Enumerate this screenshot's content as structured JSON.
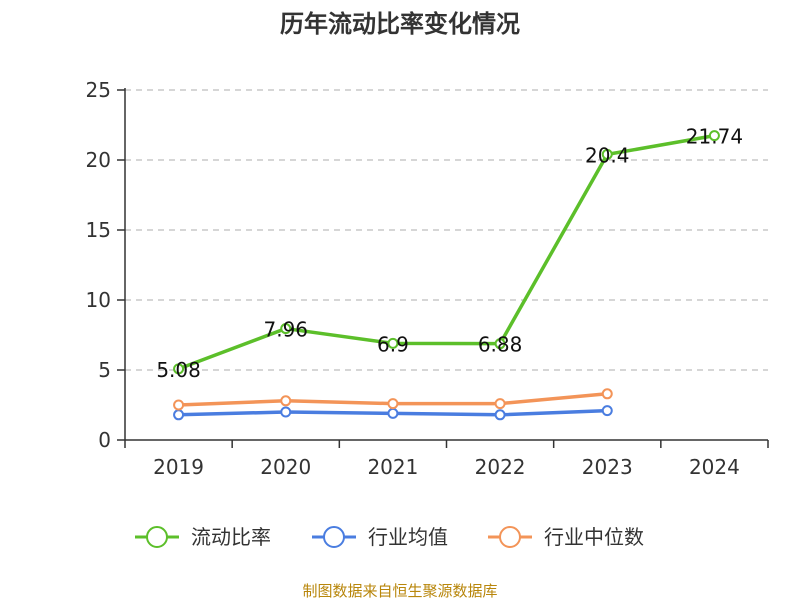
{
  "chart_data": {
    "type": "line",
    "title": "历年流动比率变化情况",
    "categories": [
      "2019",
      "2020",
      "2021",
      "2022",
      "2023",
      "2024"
    ],
    "ylim": [
      0,
      25
    ],
    "yticks": [
      "0",
      "5",
      "10",
      "15",
      "20",
      "25"
    ],
    "grid": true,
    "legend_position": "bottom",
    "series": [
      {
        "name": "流动比率",
        "color": "#5cbf2a",
        "values": [
          5.08,
          7.96,
          6.9,
          6.88,
          20.4,
          21.74
        ],
        "labels": [
          "5.08",
          "7.96",
          "6.9",
          "6.88",
          "20.4",
          "21.74"
        ]
      },
      {
        "name": "行业均值",
        "color": "#4a7de0",
        "values": [
          1.8,
          2.0,
          1.9,
          1.8,
          2.1,
          null
        ]
      },
      {
        "name": "行业中位数",
        "color": "#f39458",
        "values": [
          2.5,
          2.8,
          2.6,
          2.6,
          3.3,
          null
        ]
      }
    ],
    "source": "制图数据来自恒生聚源数据库"
  }
}
